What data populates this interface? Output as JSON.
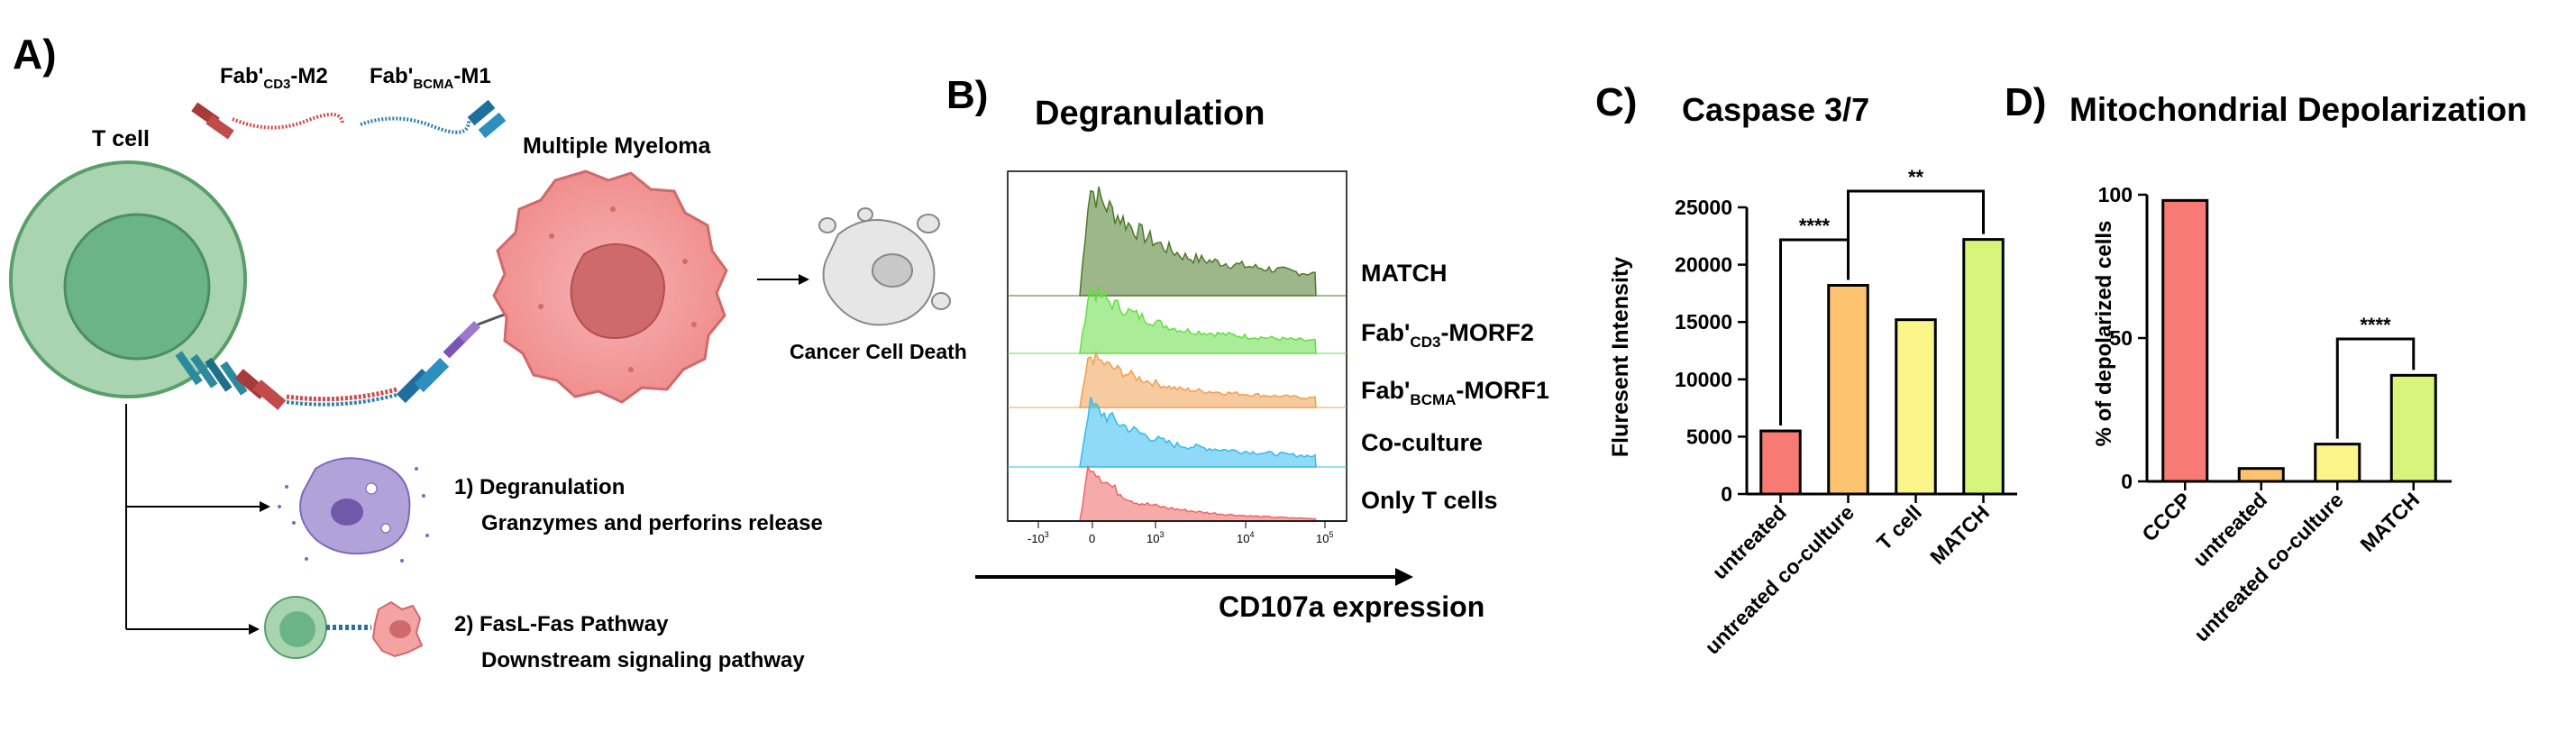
{
  "panel_a": {
    "letter": "A)",
    "t_cell": "T cell",
    "fab_cd3_prefix": "Fab'",
    "fab_cd3_sub": "CD3",
    "fab_cd3_suffix": "-M2",
    "fab_bcma_prefix": "Fab'",
    "fab_bcma_sub": "BCMA",
    "fab_bcma_suffix": "-M1",
    "myeloma": "Multiple Myeloma",
    "death": "Cancer Cell Death",
    "path1_title": "1) Degranulation",
    "path1_desc": "Granzymes and perforins release",
    "path2_title": "2) FasL-Fas Pathway",
    "path2_desc": "Downstream signaling pathway"
  },
  "panel_b": {
    "letter": "B)",
    "title": "Degranulation",
    "xlabel": "CD107a expression",
    "labels": {
      "match": "MATCH",
      "cd3_prefix": "Fab'",
      "cd3_sub": "CD3",
      "cd3_suffix": "-MORF2",
      "bcma_prefix": "Fab'",
      "bcma_sub": "BCMA",
      "bcma_suffix": "-MORF1",
      "coculture": "Co-culture",
      "tcells": "Only T cells"
    },
    "ticks": {
      "neg": "-10",
      "neg_exp": "3",
      "zero": "0",
      "t3": "10",
      "t3_exp": "3",
      "t4": "10",
      "t4_exp": "4",
      "t5": "10",
      "t5_exp": "5"
    },
    "colors": {
      "match": "#4d7a2a",
      "cd3": "#66dd44",
      "bcma": "#f0a050",
      "coculture": "#33bbee",
      "tcells": "#ee6666"
    }
  },
  "chart_data": [
    {
      "type": "bar",
      "panel": "C)",
      "title": "Caspase 3/7",
      "ylabel": "Fluresent Intensity",
      "categories": [
        "untreated",
        "untreated co-culture",
        "T cell",
        "MATCH"
      ],
      "values": [
        5500,
        18200,
        15200,
        22200
      ],
      "ylim": [
        0,
        25000
      ],
      "yticks": [
        "0",
        "5000",
        "10000",
        "15000",
        "20000",
        "25000"
      ],
      "colors": [
        "#f77b74",
        "#fdc36f",
        "#fbf58a",
        "#d6f57a"
      ],
      "significance": [
        {
          "from": 0,
          "to": 1,
          "label": "****"
        },
        {
          "from": 1,
          "to": 3,
          "label": "**"
        }
      ]
    },
    {
      "type": "bar",
      "panel": "D)",
      "title": "Mitochondrial Depolarization",
      "ylabel": "% of depolarized cells",
      "categories": [
        "CCCP",
        "untreated",
        "untreated co-culture",
        "MATCH"
      ],
      "values": [
        98,
        4.5,
        13,
        37
      ],
      "ylim": [
        0,
        100
      ],
      "yticks": [
        "0",
        "50",
        "100"
      ],
      "colors": [
        "#f77b74",
        "#fdc36f",
        "#fbf58a",
        "#d6f57a"
      ],
      "significance": [
        {
          "from": 2,
          "to": 3,
          "label": "****"
        }
      ]
    }
  ]
}
